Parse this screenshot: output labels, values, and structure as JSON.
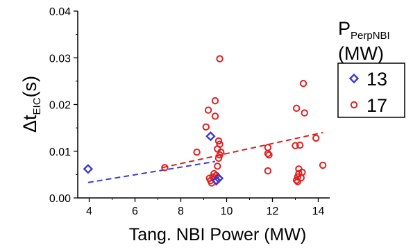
{
  "chart_data": {
    "type": "scatter",
    "title": "",
    "xlabel": "Tang. NBI Power (MW)",
    "ylabel": {
      "main": "Δt",
      "sub": "EIC",
      "unit": "(s)"
    },
    "xlim": [
      3.5,
      14.5
    ],
    "ylim": [
      0,
      0.04
    ],
    "x_ticks": [
      "4",
      "6",
      "8",
      "10",
      "12",
      "14"
    ],
    "y_ticks": [
      "0.00",
      "0.01",
      "0.02",
      "0.03",
      "0.04"
    ],
    "grid": false,
    "legend": {
      "title_main": "P",
      "title_sub": "PerpNBI",
      "title_unit": "(MW)",
      "placement": "right"
    },
    "series": [
      {
        "name": "13",
        "marker": "diamond",
        "color": "#3a3ad6",
        "x": [
          3.95,
          9.3,
          9.55,
          9.65
        ],
        "y": [
          0.0062,
          0.0132,
          0.0037,
          0.0042
        ],
        "fit": {
          "x": [
            3.95,
            9.5
          ],
          "y": [
            0.0033,
            0.0078
          ]
        }
      },
      {
        "name": "17",
        "marker": "circle",
        "color": "#e02020",
        "x": [
          7.3,
          8.7,
          9.1,
          9.2,
          9.25,
          9.3,
          9.35,
          9.4,
          9.45,
          9.5,
          9.5,
          9.55,
          9.55,
          9.6,
          9.6,
          9.65,
          9.65,
          9.7,
          9.7,
          9.7,
          9.75,
          11.8,
          11.8,
          11.85,
          11.8,
          13.0,
          13.05,
          13.05,
          13.1,
          13.1,
          13.15,
          13.15,
          13.2,
          13.25,
          13.3,
          13.35,
          13.4,
          13.9,
          14.2
        ],
        "y": [
          0.0065,
          0.0098,
          0.0152,
          0.0188,
          0.0042,
          0.0037,
          0.0032,
          0.0045,
          0.0052,
          0.0208,
          0.0175,
          0.0038,
          0.0048,
          0.0068,
          0.0105,
          0.0122,
          0.0085,
          0.0298,
          0.0115,
          0.0092,
          0.0098,
          0.0108,
          0.0095,
          0.0092,
          0.0058,
          0.0112,
          0.0192,
          0.0038,
          0.0045,
          0.0035,
          0.0052,
          0.0062,
          0.0113,
          0.0043,
          0.0055,
          0.0245,
          0.0182,
          0.0128,
          0.007
        ],
        "fit": {
          "x": [
            7.2,
            14.2
          ],
          "y": [
            0.0065,
            0.014
          ]
        }
      }
    ]
  }
}
